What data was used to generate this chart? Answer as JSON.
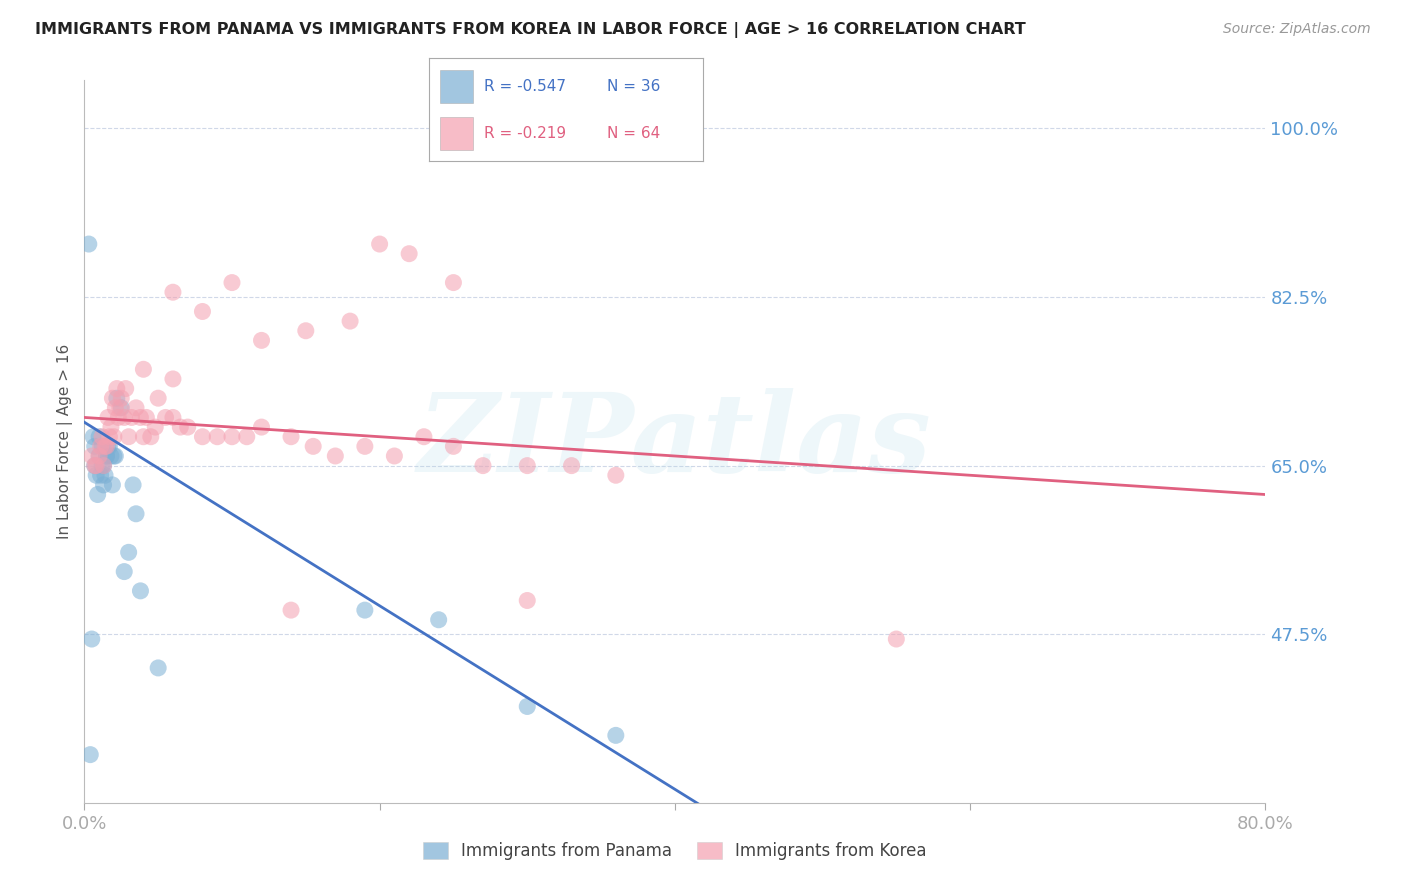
{
  "title": "IMMIGRANTS FROM PANAMA VS IMMIGRANTS FROM KOREA IN LABOR FORCE | AGE > 16 CORRELATION CHART",
  "source_text": "Source: ZipAtlas.com",
  "ylabel": "In Labor Force | Age > 16",
  "xlim": [
    0.0,
    0.8
  ],
  "ylim": [
    0.3,
    1.05
  ],
  "yticks": [
    0.475,
    0.65,
    0.825,
    1.0
  ],
  "ytick_labels": [
    "47.5%",
    "65.0%",
    "82.5%",
    "100.0%"
  ],
  "xticks": [
    0.0,
    0.2,
    0.4,
    0.6,
    0.8
  ],
  "xtick_labels": [
    "0.0%",
    "",
    "",
    "",
    "80.0%"
  ],
  "background_color": "#ffffff",
  "watermark": "ZIPatlas",
  "legend_R_panama": "-0.547",
  "legend_N_panama": "36",
  "legend_R_korea": "-0.219",
  "legend_N_korea": "64",
  "panama_color": "#7bafd4",
  "korea_color": "#f4a0b0",
  "panama_line_color": "#4472c4",
  "korea_line_color": "#e06080",
  "axis_label_color": "#5b9bd5",
  "grid_color": "#d0d8e8",
  "panama_line_x0": 0.0,
  "panama_line_y0": 0.695,
  "panama_line_x1": 0.42,
  "panama_line_y1": 0.295,
  "korea_line_x0": 0.0,
  "korea_line_y0": 0.7,
  "korea_line_x1": 0.8,
  "korea_line_y1": 0.62,
  "panama_x": [
    0.003,
    0.004,
    0.005,
    0.006,
    0.007,
    0.007,
    0.008,
    0.009,
    0.01,
    0.01,
    0.011,
    0.012,
    0.012,
    0.013,
    0.013,
    0.014,
    0.015,
    0.015,
    0.016,
    0.017,
    0.018,
    0.019,
    0.02,
    0.021,
    0.022,
    0.025,
    0.027,
    0.03,
    0.033,
    0.035,
    0.038,
    0.05,
    0.19,
    0.24,
    0.3,
    0.36
  ],
  "panama_y": [
    0.88,
    0.35,
    0.47,
    0.68,
    0.65,
    0.67,
    0.64,
    0.62,
    0.66,
    0.68,
    0.64,
    0.65,
    0.67,
    0.65,
    0.63,
    0.64,
    0.66,
    0.66,
    0.67,
    0.67,
    0.66,
    0.63,
    0.66,
    0.66,
    0.72,
    0.71,
    0.54,
    0.56,
    0.63,
    0.6,
    0.52,
    0.44,
    0.5,
    0.49,
    0.4,
    0.37
  ],
  "korea_x": [
    0.005,
    0.007,
    0.008,
    0.01,
    0.011,
    0.012,
    0.013,
    0.014,
    0.015,
    0.016,
    0.017,
    0.018,
    0.019,
    0.02,
    0.021,
    0.022,
    0.023,
    0.024,
    0.025,
    0.027,
    0.028,
    0.03,
    0.032,
    0.035,
    0.038,
    0.04,
    0.042,
    0.045,
    0.048,
    0.05,
    0.055,
    0.06,
    0.065,
    0.07,
    0.08,
    0.09,
    0.1,
    0.11,
    0.12,
    0.14,
    0.155,
    0.17,
    0.19,
    0.21,
    0.23,
    0.25,
    0.27,
    0.3,
    0.33,
    0.36,
    0.2,
    0.15,
    0.25,
    0.12,
    0.08,
    0.06,
    0.1,
    0.18,
    0.22,
    0.55,
    0.06,
    0.04,
    0.3,
    0.14
  ],
  "korea_y": [
    0.66,
    0.65,
    0.65,
    0.66,
    0.67,
    0.68,
    0.65,
    0.67,
    0.67,
    0.7,
    0.68,
    0.69,
    0.72,
    0.68,
    0.71,
    0.73,
    0.7,
    0.71,
    0.72,
    0.7,
    0.73,
    0.68,
    0.7,
    0.71,
    0.7,
    0.68,
    0.7,
    0.68,
    0.69,
    0.72,
    0.7,
    0.7,
    0.69,
    0.69,
    0.68,
    0.68,
    0.68,
    0.68,
    0.69,
    0.68,
    0.67,
    0.66,
    0.67,
    0.66,
    0.68,
    0.67,
    0.65,
    0.65,
    0.65,
    0.64,
    0.88,
    0.79,
    0.84,
    0.78,
    0.81,
    0.83,
    0.84,
    0.8,
    0.87,
    0.47,
    0.74,
    0.75,
    0.51,
    0.5
  ]
}
